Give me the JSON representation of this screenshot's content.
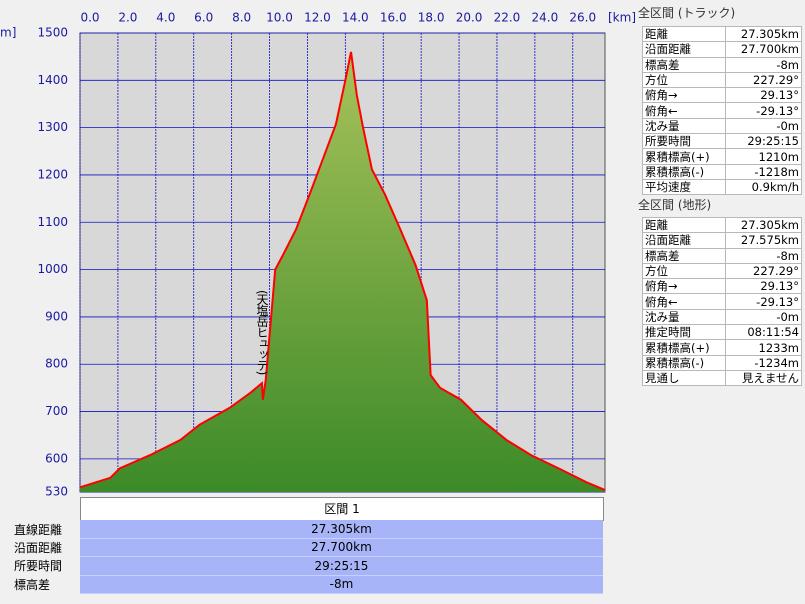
{
  "chart_data": {
    "type": "area",
    "x_unit": "[km]",
    "y_unit": "m]",
    "x": [
      0,
      1.6,
      2.1,
      3.7,
      5.3,
      6.3,
      7.9,
      9.0,
      9.6,
      9.65,
      9.8,
      10.3,
      10.7,
      11.4,
      12.2,
      12.8,
      13.5,
      14.0,
      14.3,
      14.6,
      14.9,
      15.4,
      16.1,
      16.9,
      17.7,
      18.3,
      18.5,
      19.0,
      20.1,
      21.2,
      22.5,
      23.8,
      25.4,
      26.7,
      27.7
    ],
    "series": [
      {
        "color": "#ff0000",
        "fill": "#6a9e38",
        "values": [
          540,
          560,
          580,
          608,
          640,
          672,
          708,
          740,
          760,
          725,
          767,
          1000,
          1030,
          1085,
          1168,
          1232,
          1307,
          1400,
          1460,
          1370,
          1307,
          1212,
          1158,
          1085,
          1010,
          935,
          777,
          750,
          725,
          682,
          640,
          608,
          577,
          551,
          534
        ]
      }
    ],
    "xlim": [
      0,
      27.7
    ],
    "ylim": [
      530,
      1500
    ],
    "xticks": [
      {
        "value": 0,
        "label": "0.0"
      },
      {
        "value": 2,
        "label": "2.0"
      },
      {
        "value": 4,
        "label": "4.0"
      },
      {
        "value": 6,
        "label": "6.0"
      },
      {
        "value": 8,
        "label": "8.0"
      },
      {
        "value": 10,
        "label": "10.0"
      },
      {
        "value": 12,
        "label": "12.0"
      },
      {
        "value": 14,
        "label": "14.0"
      },
      {
        "value": 16,
        "label": "16.0"
      },
      {
        "value": 18,
        "label": "18.0"
      },
      {
        "value": 20,
        "label": "20.0"
      },
      {
        "value": 22,
        "label": "22.0"
      },
      {
        "value": 24,
        "label": "24.0"
      },
      {
        "value": 26,
        "label": "26.0"
      }
    ],
    "yticks": [
      530,
      600,
      700,
      800,
      900,
      1000,
      1100,
      1200,
      1300,
      1400,
      1500
    ],
    "grid": true,
    "annotations": [
      "(天塩岳ヒュッテ)"
    ]
  },
  "section": {
    "header": "区間 1",
    "rows": [
      [
        "直線距離",
        "27.305km"
      ],
      [
        "沿面距離",
        "27.700km"
      ],
      [
        "所要時間",
        "29:25:15"
      ],
      [
        "標高差",
        "-8m"
      ]
    ]
  },
  "track_panel": {
    "title": "全区間 (トラック)",
    "rows": [
      [
        "距離",
        "27.305km"
      ],
      [
        "沿面距離",
        "27.700km"
      ],
      [
        "標高差",
        "-8m"
      ],
      [
        "方位",
        "227.29°"
      ],
      [
        "俯角→",
        "29.13°"
      ],
      [
        "俯角←",
        "-29.13°"
      ],
      [
        "沈み量",
        "-0m"
      ],
      [
        "所要時間",
        "29:25:15"
      ],
      [
        "累積標高(+)",
        "1210m"
      ],
      [
        "累積標高(-)",
        "-1218m"
      ],
      [
        "平均速度",
        "0.9km/h"
      ]
    ]
  },
  "terrain_panel": {
    "title": "全区間 (地形)",
    "rows": [
      [
        "距離",
        "27.305km"
      ],
      [
        "沿面距離",
        "27.575km"
      ],
      [
        "標高差",
        "-8m"
      ],
      [
        "方位",
        "227.29°"
      ],
      [
        "俯角→",
        "29.13°"
      ],
      [
        "俯角←",
        "-29.13°"
      ],
      [
        "沈み量",
        "-0m"
      ],
      [
        "推定時間",
        "08:11:54"
      ],
      [
        "累積標高(+)",
        "1233m"
      ],
      [
        "累積標高(-)",
        "-1234m"
      ],
      [
        "見通し",
        "見えません"
      ]
    ]
  }
}
